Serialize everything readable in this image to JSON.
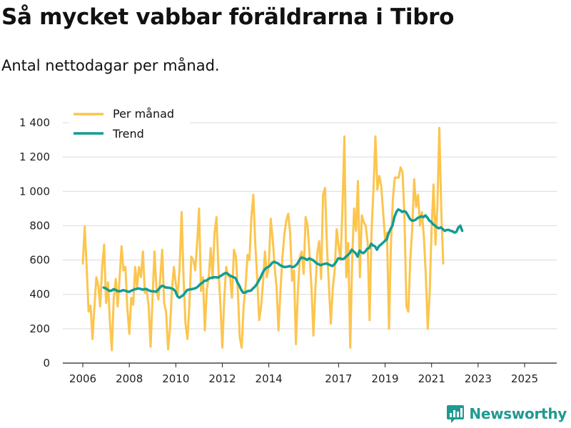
{
  "header": {
    "title": "Så mycket vabbar föräldrarna i Tibro",
    "subtitle": "Antal nettodagar per månad."
  },
  "branding": {
    "logo_text": "Newsworthy",
    "logo_icon": "chart-logo-icon"
  },
  "colors": {
    "monthly": "#fcc54e",
    "trend": "#139c94",
    "grid": "#d9d9d9",
    "axis": "#222222",
    "brand": "#1f9a91"
  },
  "chart_data": {
    "type": "line",
    "title": "Så mycket vabbar föräldrarna i Tibro",
    "subtitle": "Antal nettodagar per månad.",
    "xlabel": "",
    "ylabel": "",
    "xlim": [
      2005.5,
      2025.7
    ],
    "ylim": [
      0,
      1400
    ],
    "x_ticks": [
      2006,
      2008,
      2010,
      2012,
      2014,
      2017,
      2019,
      2021,
      2023,
      2025
    ],
    "x_tick_labels": [
      "2006",
      "2008",
      "2010",
      "2012",
      "2014",
      "2017",
      "2019",
      "2021",
      "2023",
      "2025"
    ],
    "y_ticks": [
      0,
      200,
      400,
      600,
      800,
      1000,
      1200,
      1400
    ],
    "y_tick_labels": [
      "0",
      "200",
      "400",
      "600",
      "800",
      "1 000",
      "1 200",
      "1 400"
    ],
    "grid": true,
    "legend": {
      "position": "top-left",
      "entries": [
        "Per månad",
        "Trend"
      ]
    },
    "series": [
      {
        "name": "Per månad",
        "start": 2006.0,
        "step_months": 1,
        "values": [
          580,
          795,
          560,
          300,
          335,
          140,
          330,
          500,
          450,
          330,
          560,
          690,
          350,
          470,
          240,
          75,
          380,
          490,
          330,
          500,
          680,
          540,
          560,
          320,
          170,
          380,
          340,
          560,
          440,
          560,
          500,
          650,
          410,
          420,
          330,
          95,
          380,
          650,
          430,
          370,
          500,
          660,
          350,
          300,
          80,
          200,
          430,
          560,
          460,
          400,
          560,
          880,
          490,
          230,
          140,
          330,
          620,
          600,
          540,
          700,
          900,
          420,
          500,
          190,
          430,
          500,
          670,
          490,
          760,
          850,
          550,
          340,
          90,
          380,
          560,
          510,
          500,
          380,
          660,
          620,
          420,
          150,
          90,
          330,
          450,
          630,
          600,
          850,
          980,
          700,
          500,
          250,
          330,
          470,
          650,
          500,
          570,
          840,
          720,
          560,
          440,
          190,
          420,
          610,
          750,
          830,
          870,
          760,
          480,
          540,
          110,
          420,
          620,
          650,
          520,
          850,
          800,
          640,
          440,
          160,
          430,
          640,
          710,
          490,
          980,
          1020,
          680,
          450,
          230,
          430,
          540,
          780,
          680,
          600,
          900,
          1320,
          500,
          700,
          90,
          600,
          900,
          770,
          1060,
          500,
          860,
          820,
          800,
          700,
          250,
          760,
          1010,
          1320,
          1010,
          1090,
          1030,
          880,
          720,
          760,
          200,
          690,
          950,
          1080,
          1080,
          1080,
          1140,
          1110,
          850,
          330,
          300,
          600,
          780,
          1070,
          910,
          980,
          800,
          880,
          740,
          520,
          200,
          410,
          780,
          1040,
          690,
          920,
          1370,
          880,
          580
        ]
      },
      {
        "name": "Trend",
        "start": 2006.9,
        "step_months": 1,
        "values": [
          440,
          435,
          428,
          420,
          422,
          430,
          427,
          420,
          418,
          420,
          425,
          422,
          418,
          415,
          420,
          425,
          430,
          432,
          435,
          432,
          428,
          430,
          432,
          425,
          420,
          418,
          418,
          415,
          425,
          440,
          450,
          448,
          440,
          440,
          438,
          435,
          430,
          418,
          390,
          380,
          388,
          395,
          410,
          425,
          428,
          430,
          432,
          435,
          440,
          450,
          462,
          468,
          480,
          480,
          490,
          495,
          498,
          500,
          500,
          498,
          505,
          512,
          520,
          525,
          520,
          510,
          505,
          500,
          495,
          470,
          450,
          425,
          410,
          410,
          418,
          420,
          422,
          435,
          445,
          460,
          480,
          500,
          525,
          545,
          555,
          560,
          570,
          585,
          590,
          585,
          580,
          570,
          565,
          560,
          560,
          562,
          565,
          560,
          560,
          568,
          580,
          600,
          615,
          612,
          608,
          600,
          610,
          605,
          600,
          590,
          580,
          575,
          570,
          575,
          578,
          580,
          575,
          570,
          565,
          575,
          590,
          610,
          610,
          605,
          608,
          620,
          630,
          640,
          660,
          650,
          640,
          620,
          655,
          645,
          640,
          650,
          665,
          670,
          695,
          685,
          680,
          660,
          680,
          690,
          700,
          710,
          720,
          755,
          780,
          800,
          850,
          880,
          895,
          890,
          880,
          885,
          880,
          860,
          840,
          830,
          830,
          835,
          845,
          850,
          855,
          850,
          860,
          848,
          830,
          822,
          808,
          800,
          790,
          785,
          790,
          780,
          770,
          775,
          776,
          770,
          768,
          760,
          765,
          790,
          800,
          770
        ]
      }
    ]
  }
}
